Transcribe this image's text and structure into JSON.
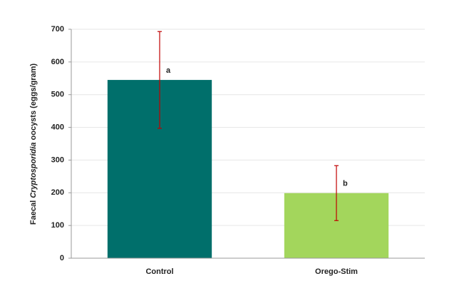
{
  "chart_data": {
    "type": "bar",
    "y_label": [
      "Faecal ",
      "Cryptosporidia",
      " oocysts (eggs/gram)"
    ],
    "categories": [
      "Control",
      "Orego-Stim"
    ],
    "values": [
      545,
      199
    ],
    "errors": [
      148,
      84
    ],
    "annotations": [
      "a",
      "b"
    ],
    "colors": [
      "#006f6b",
      "#a3d65c"
    ],
    "error_color": "#c00000",
    "ylim": [
      0,
      700
    ],
    "yticks": [
      0,
      100,
      200,
      300,
      400,
      500,
      600,
      700
    ],
    "grid": true
  }
}
